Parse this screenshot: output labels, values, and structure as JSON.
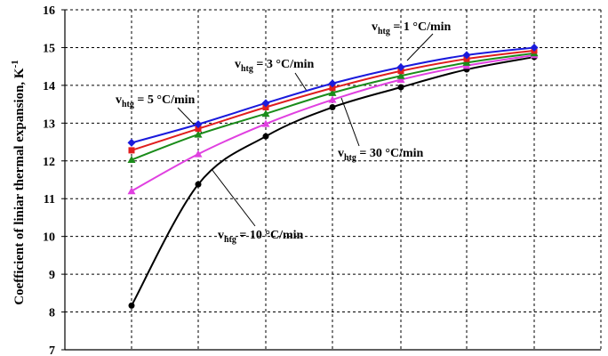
{
  "chart_data": {
    "type": "line",
    "title": "",
    "xlabel": "",
    "ylabel": "Coefficient of liniar thermal expansion, K",
    "ylabel_superscript": "-1",
    "ylim": [
      7,
      16
    ],
    "yticks": [
      7,
      8,
      9,
      10,
      11,
      12,
      13,
      14,
      15,
      16
    ],
    "x": [
      1,
      2,
      3,
      4,
      5,
      6,
      7
    ],
    "grid": true,
    "legend": "none",
    "series": [
      {
        "name": "vhtg = 1 °C/min",
        "color": "#1a1adc",
        "marker": "diamond",
        "values": [
          12.48,
          12.97,
          13.53,
          14.05,
          14.48,
          14.8,
          15.0
        ]
      },
      {
        "name": "vhtg = 3 °C/min",
        "color": "#e01e1e",
        "marker": "square",
        "values": [
          12.28,
          12.85,
          13.42,
          13.93,
          14.38,
          14.7,
          14.92
        ]
      },
      {
        "name": "vhtg = 5 °C/min",
        "color": "#1a8c1a",
        "marker": "triangle",
        "values": [
          12.03,
          12.7,
          13.25,
          13.8,
          14.25,
          14.6,
          14.85
        ]
      },
      {
        "name": "vhtg = 10 °C/min",
        "color": "#e040e0",
        "marker": "triangle",
        "values": [
          11.2,
          12.18,
          12.98,
          13.62,
          14.15,
          14.52,
          14.8
        ]
      },
      {
        "name": "vhtg = 30 °C/min",
        "color": "#000000",
        "marker": "circle",
        "values": [
          8.17,
          11.38,
          12.65,
          13.42,
          13.95,
          14.42,
          14.75
        ]
      }
    ]
  },
  "annotations": [
    {
      "prefix": "v",
      "sub": "htg",
      "text": " = 1 °C/min"
    },
    {
      "prefix": "v",
      "sub": "htg",
      "text": " = 3 °C/min"
    },
    {
      "prefix": "v",
      "sub": "htg",
      "text": " = 5 °C/min"
    },
    {
      "prefix": "v",
      "sub": "htg",
      "text": " = 30 °C/min"
    },
    {
      "prefix": "v",
      "sub": "htg",
      "text": " = 10 °C/min"
    }
  ]
}
